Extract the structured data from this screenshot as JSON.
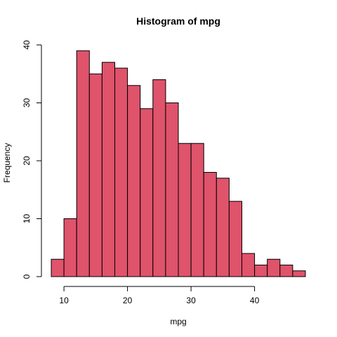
{
  "chart_data": {
    "type": "bar",
    "title": "Histogram of mpg",
    "xlabel": "mpg",
    "ylabel": "Frequency",
    "bin_width": 2,
    "bins": [
      {
        "start": 8,
        "end": 10,
        "count": 3
      },
      {
        "start": 10,
        "end": 12,
        "count": 10
      },
      {
        "start": 12,
        "end": 14,
        "count": 39
      },
      {
        "start": 14,
        "end": 16,
        "count": 35
      },
      {
        "start": 16,
        "end": 18,
        "count": 37
      },
      {
        "start": 18,
        "end": 20,
        "count": 36
      },
      {
        "start": 20,
        "end": 22,
        "count": 33
      },
      {
        "start": 22,
        "end": 24,
        "count": 29
      },
      {
        "start": 24,
        "end": 26,
        "count": 34
      },
      {
        "start": 26,
        "end": 28,
        "count": 30
      },
      {
        "start": 28,
        "end": 30,
        "count": 23
      },
      {
        "start": 30,
        "end": 32,
        "count": 23
      },
      {
        "start": 32,
        "end": 34,
        "count": 18
      },
      {
        "start": 34,
        "end": 36,
        "count": 17
      },
      {
        "start": 36,
        "end": 38,
        "count": 13
      },
      {
        "start": 38,
        "end": 40,
        "count": 4
      },
      {
        "start": 40,
        "end": 42,
        "count": 2
      },
      {
        "start": 42,
        "end": 44,
        "count": 3
      },
      {
        "start": 44,
        "end": 46,
        "count": 2
      },
      {
        "start": 46,
        "end": 48,
        "count": 1
      }
    ],
    "xticks": [
      10,
      20,
      30,
      40
    ],
    "yticks": [
      0,
      10,
      20,
      30,
      40
    ],
    "xlim": [
      8,
      48
    ],
    "ylim": [
      0,
      40
    ],
    "bar_color": "#DF536B",
    "grid": false
  }
}
